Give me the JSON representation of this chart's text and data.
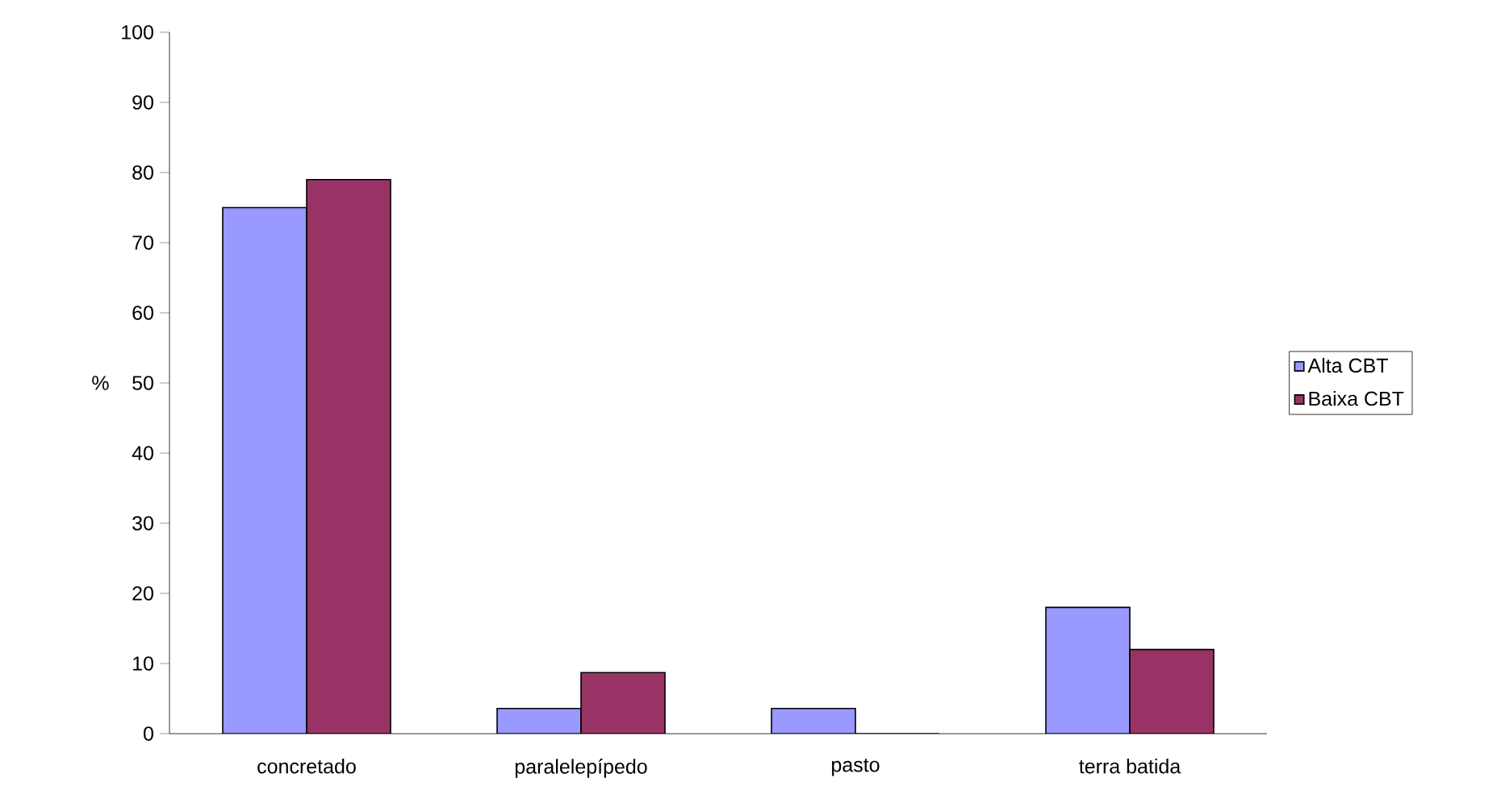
{
  "chart_data": {
    "type": "bar",
    "ylabel": "%",
    "categories": [
      "concretado",
      "paralelepípedo",
      "pasto",
      "terra batida"
    ],
    "series": [
      {
        "name": "Alta CBT",
        "color": "#9999ff",
        "values": [
          75,
          3.6,
          3.6,
          18
        ]
      },
      {
        "name": "Baixa CBT",
        "color": "#993366",
        "values": [
          79,
          8.7,
          0,
          12
        ]
      }
    ],
    "ylim": [
      0,
      100
    ],
    "yticks": [
      0,
      10,
      20,
      30,
      40,
      50,
      60,
      70,
      80,
      90,
      100
    ],
    "grid": false,
    "legend": "right"
  }
}
